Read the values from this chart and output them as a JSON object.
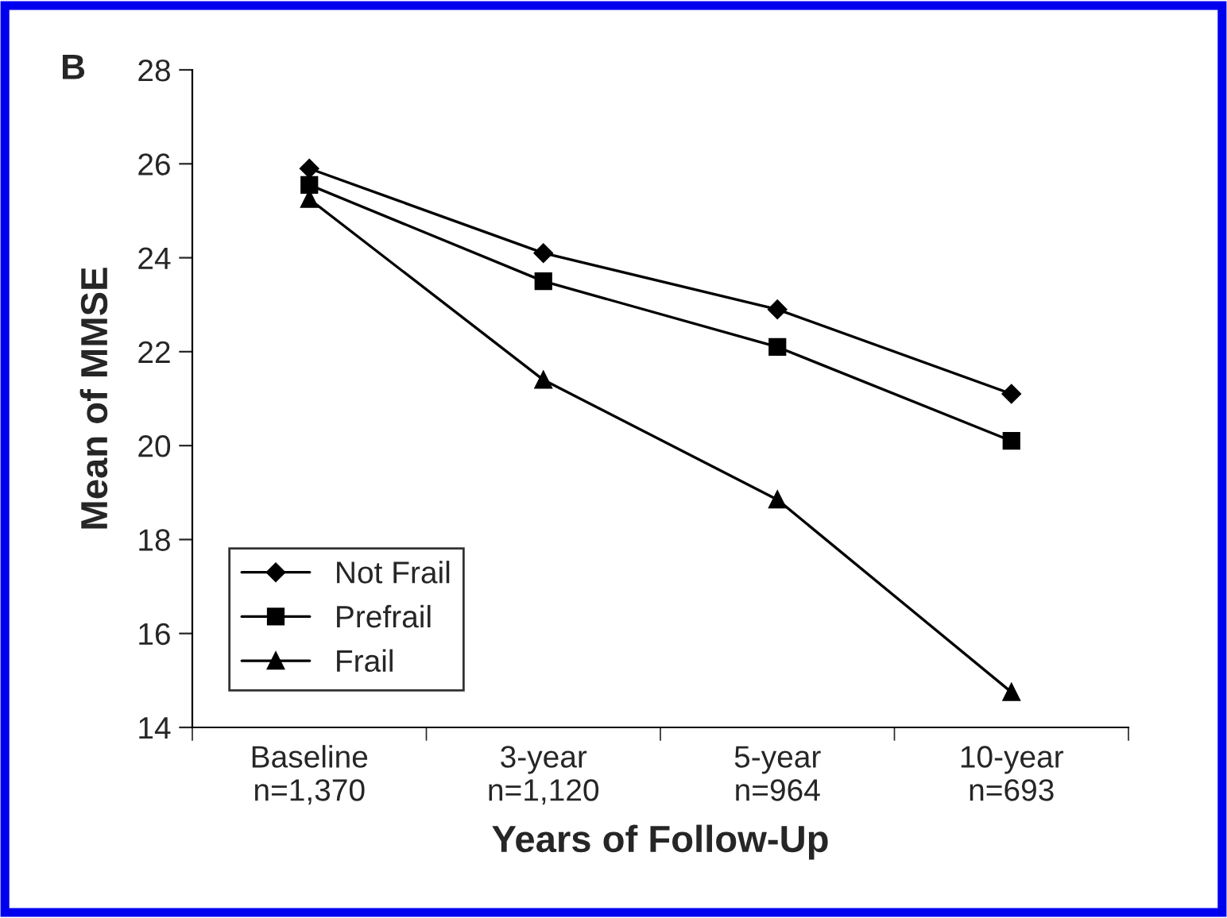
{
  "chart_data": {
    "type": "line",
    "xlabel": "Years of Follow-Up",
    "ylabel": "Mean of MMSE",
    "categories": [
      "Baseline\nn=1,370",
      "3-year\nn=1,120",
      "5-year\nn=964",
      "10-year\nn=693"
    ],
    "series": [
      {
        "name": "Not Frail",
        "color": "#000000",
        "marker": "diamond",
        "values": [
          25.9,
          24.1,
          22.9,
          21.1
        ]
      },
      {
        "name": "Prefrail",
        "color": "#000000",
        "marker": "square",
        "values": [
          25.55,
          23.5,
          22.1,
          20.1
        ]
      },
      {
        "name": "Frail",
        "color": "#000000",
        "marker": "triangle",
        "values": [
          25.25,
          21.4,
          18.85,
          14.75
        ]
      }
    ],
    "ylim": [
      14,
      28
    ],
    "yticks": [
      14,
      16,
      18,
      20,
      22,
      24,
      26,
      28
    ],
    "annotations": [
      "B"
    ],
    "legend": "bottom left",
    "grid": false,
    "line_style": "solid"
  }
}
